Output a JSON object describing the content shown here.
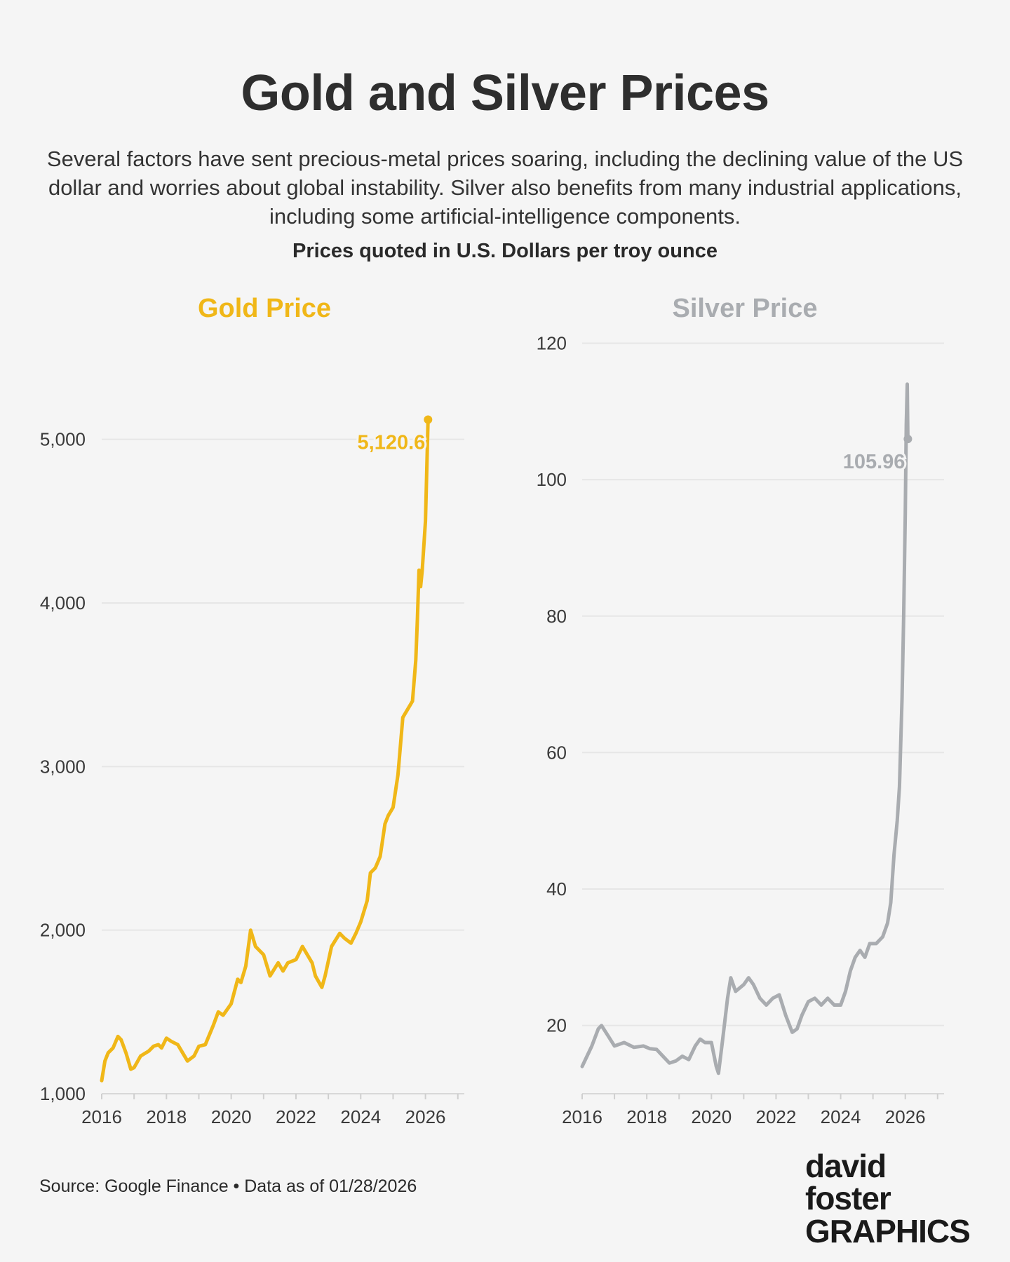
{
  "header": {
    "title": "Gold and Silver Prices",
    "subtitle": "Several factors have sent precious-metal prices soaring, including the declining value of the US dollar and worries about global instability. Silver also benefits from many industrial applications, including some artificial-intelligence components.",
    "units": "Prices quoted in U.S. Dollars per troy ounce"
  },
  "footer": {
    "source": "Source: Google Finance • Data as of 01/28/2026",
    "logo_line1": "david foster",
    "logo_line2": "GRAPHICS"
  },
  "colors": {
    "gold": "#f0b718",
    "silver": "#a9acb0",
    "grid": "#e6e6e6",
    "background": "#f5f5f5"
  },
  "chart_data": [
    {
      "type": "line",
      "title": "Gold Price",
      "xlabel": "",
      "ylabel": "",
      "xlim": [
        2016,
        2027.2
      ],
      "ylim": [
        1000,
        5200
      ],
      "x_ticks": [
        2016,
        2018,
        2020,
        2022,
        2024,
        2026
      ],
      "y_ticks": [
        1000,
        2000,
        3000,
        4000,
        5000
      ],
      "y_tick_labels": [
        "1,000",
        "2,000",
        "3,000",
        "4,000",
        "5,000"
      ],
      "grid": true,
      "end_label": "5,120.6",
      "series": [
        {
          "values_x": [
            2016.0,
            2016.1,
            2016.2,
            2016.35,
            2016.5,
            2016.6,
            2016.75,
            2016.9,
            2017.0,
            2017.2,
            2017.45,
            2017.6,
            2017.75,
            2017.85,
            2018.0,
            2018.15,
            2018.35,
            2018.5,
            2018.65,
            2018.85,
            2019.0,
            2019.2,
            2019.45,
            2019.6,
            2019.75,
            2020.0,
            2020.2,
            2020.3,
            2020.45,
            2020.6,
            2020.75,
            2021.0,
            2021.2,
            2021.45,
            2021.6,
            2021.75,
            2022.0,
            2022.2,
            2022.5,
            2022.6,
            2022.8,
            2022.9,
            2023.1,
            2023.35,
            2023.5,
            2023.7,
            2023.85,
            2024.0,
            2024.2,
            2024.3,
            2024.45,
            2024.6,
            2024.75,
            2024.85,
            2025.0,
            2025.15,
            2025.3,
            2025.45,
            2025.6,
            2025.7,
            2025.75,
            2025.8,
            2025.85,
            2025.9,
            2026.0,
            2026.08
          ],
          "values_y": [
            1080,
            1200,
            1250,
            1280,
            1350,
            1330,
            1250,
            1150,
            1160,
            1230,
            1260,
            1290,
            1300,
            1280,
            1340,
            1320,
            1300,
            1250,
            1200,
            1230,
            1290,
            1300,
            1420,
            1500,
            1480,
            1550,
            1700,
            1680,
            1780,
            2000,
            1900,
            1850,
            1720,
            1800,
            1750,
            1800,
            1820,
            1900,
            1800,
            1720,
            1650,
            1720,
            1900,
            1980,
            1950,
            1920,
            1980,
            2050,
            2180,
            2350,
            2380,
            2450,
            2650,
            2700,
            2750,
            2950,
            3300,
            3350,
            3400,
            3650,
            3900,
            4200,
            4100,
            4200,
            4500,
            5120.6
          ]
        }
      ]
    },
    {
      "type": "line",
      "title": "Silver Price",
      "xlabel": "",
      "ylabel": "",
      "xlim": [
        2016,
        2027.2
      ],
      "ylim": [
        10,
        122
      ],
      "x_ticks": [
        2016,
        2018,
        2020,
        2022,
        2024,
        2026
      ],
      "y_ticks": [
        20,
        40,
        60,
        80,
        100,
        120
      ],
      "y_tick_labels": [
        "20",
        "40",
        "60",
        "80",
        "100",
        "120"
      ],
      "grid": true,
      "end_label": "105.96",
      "series": [
        {
          "values_x": [
            2016.0,
            2016.15,
            2016.3,
            2016.5,
            2016.6,
            2016.8,
            2017.0,
            2017.3,
            2017.6,
            2017.9,
            2018.1,
            2018.3,
            2018.5,
            2018.7,
            2018.9,
            2019.1,
            2019.3,
            2019.5,
            2019.65,
            2019.8,
            2020.0,
            2020.15,
            2020.22,
            2020.35,
            2020.5,
            2020.6,
            2020.75,
            2021.0,
            2021.15,
            2021.3,
            2021.5,
            2021.7,
            2021.9,
            2022.1,
            2022.3,
            2022.5,
            2022.65,
            2022.8,
            2023.0,
            2023.2,
            2023.4,
            2023.6,
            2023.8,
            2024.0,
            2024.15,
            2024.3,
            2024.45,
            2024.6,
            2024.75,
            2024.9,
            2025.1,
            2025.3,
            2025.45,
            2025.55,
            2025.65,
            2025.75,
            2025.82,
            2025.9,
            2025.95,
            2026.0,
            2026.03,
            2026.06,
            2026.08
          ],
          "values_y": [
            14,
            15.5,
            17,
            19.5,
            20,
            18.5,
            17,
            17.5,
            16.8,
            17,
            16.6,
            16.5,
            15.5,
            14.5,
            14.8,
            15.5,
            15,
            17,
            18,
            17.5,
            17.5,
            14,
            13,
            18,
            24,
            27,
            25,
            26,
            27,
            26,
            24,
            23,
            24,
            24.5,
            21.5,
            19,
            19.5,
            21.5,
            23.5,
            24,
            23,
            24,
            23,
            23,
            25,
            28,
            30,
            31,
            30,
            32,
            32,
            33,
            35,
            38,
            45,
            50,
            55,
            68,
            80,
            95,
            108,
            114,
            105.96
          ]
        }
      ]
    }
  ]
}
